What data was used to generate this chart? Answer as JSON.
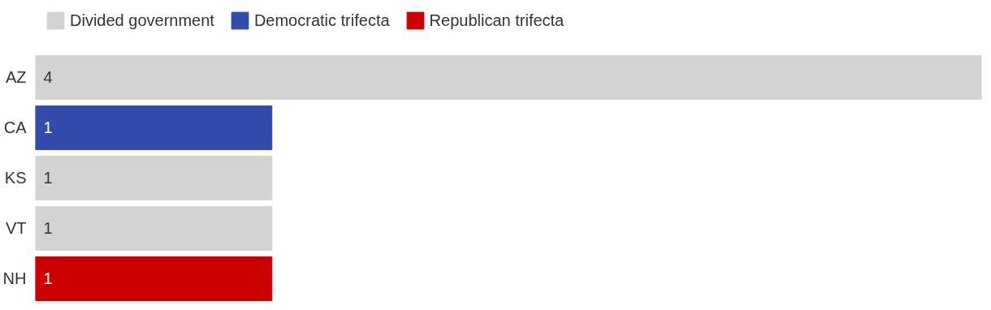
{
  "chart_data": {
    "type": "bar",
    "orientation": "horizontal",
    "categories": [
      "AZ",
      "CA",
      "KS",
      "VT",
      "NH"
    ],
    "series": [
      {
        "name": "Divided government",
        "color": "#d3d3d3",
        "values": [
          4,
          null,
          1,
          1,
          null
        ]
      },
      {
        "name": "Democratic trifecta",
        "color": "#334cab",
        "values": [
          null,
          1,
          null,
          null,
          null
        ]
      },
      {
        "name": "Republican trifecta",
        "color": "#cc0000",
        "values": [
          null,
          null,
          null,
          null,
          1
        ]
      }
    ],
    "xlim": [
      0,
      4
    ],
    "tick_labels": "y",
    "data_labels": true,
    "legend": "top left",
    "grid": false
  }
}
